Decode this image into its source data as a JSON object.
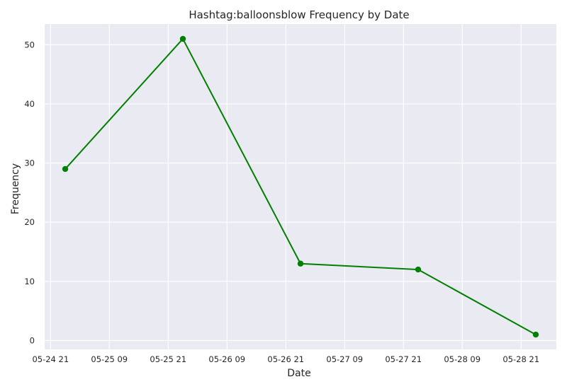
{
  "chart_data": {
    "type": "line",
    "title": "Hashtag:balloonsblow Frequency by Date",
    "xlabel": "Date",
    "ylabel": "Frequency",
    "x": [
      "2023-05-25",
      "2023-05-26",
      "2023-05-27",
      "2023-05-28",
      "2023-05-29"
    ],
    "series": [
      {
        "values": [
          29,
          51,
          13,
          12,
          1
        ],
        "color": "#008000"
      }
    ],
    "x_ticks": [
      "05-24 21",
      "05-25 09",
      "05-25 21",
      "05-26 09",
      "05-26 21",
      "05-27 09",
      "05-27 21",
      "05-28 09",
      "05-28 21"
    ],
    "y_ticks": [
      0,
      10,
      20,
      30,
      40,
      50
    ],
    "ylim": [
      -1.5,
      53.5
    ],
    "xlim_hours_from_first_tick": [
      -1.2,
      103.2
    ],
    "grid": true,
    "background_color": "#eaeaf2",
    "grid_color": "#ffffff"
  }
}
